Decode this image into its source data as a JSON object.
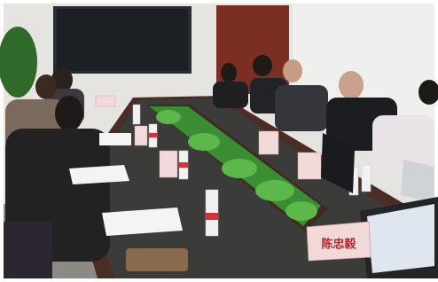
{
  "name_card": {
    "text": "陈忠毅"
  }
}
